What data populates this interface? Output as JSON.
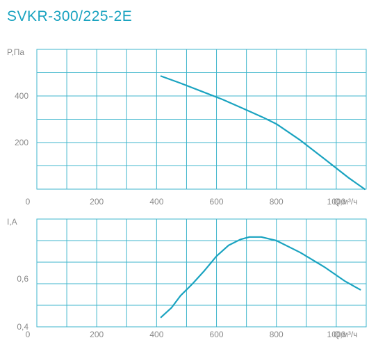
{
  "title": "SVKR-300/225-2E",
  "colors": {
    "title": "#1aa3c0",
    "line": "#1aa3c0",
    "grid": "#3fb6cc",
    "axis_text": "#8a8a8a"
  },
  "chart_data": [
    {
      "type": "line",
      "ylabel": "P,Па",
      "xlabel": "Q,м³/ч",
      "xlim": [
        0,
        1100
      ],
      "ylim": [
        0,
        600
      ],
      "grid": true,
      "x_ticks": [
        0,
        200,
        400,
        600,
        800,
        1000
      ],
      "y_ticks": [
        {
          "value": 200,
          "label": "200"
        },
        {
          "value": 400,
          "label": "400"
        }
      ],
      "series": [
        {
          "x": [
            415,
            480,
            550,
            620,
            700,
            760,
            800,
            880,
            960,
            1040,
            1095
          ],
          "y": [
            485,
            455,
            420,
            385,
            340,
            305,
            280,
            210,
            130,
            50,
            0
          ]
        }
      ]
    },
    {
      "type": "line",
      "ylabel": "I,A",
      "xlabel": "Q,м³/ч",
      "xlim": [
        0,
        1100
      ],
      "ylim": [
        0.4,
        0.85
      ],
      "grid": true,
      "x_ticks": [
        0,
        200,
        400,
        600,
        800,
        1000
      ],
      "y_ticks": [
        {
          "value": 0.4,
          "label": "0,4"
        },
        {
          "value": 0.6,
          "label": "0,6"
        }
      ],
      "series": [
        {
          "x": [
            415,
            450,
            480,
            520,
            560,
            600,
            640,
            680,
            710,
            750,
            800,
            880,
            960,
            1030,
            1080
          ],
          "y": [
            0.44,
            0.48,
            0.53,
            0.58,
            0.635,
            0.695,
            0.74,
            0.765,
            0.775,
            0.775,
            0.76,
            0.71,
            0.65,
            0.59,
            0.555
          ]
        }
      ]
    }
  ]
}
